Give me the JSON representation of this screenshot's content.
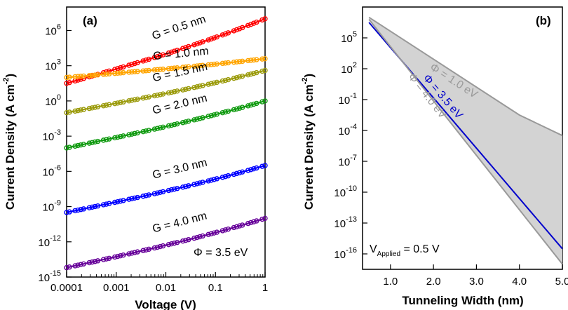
{
  "chart_data": [
    {
      "type": "scatter",
      "panel_label": "(a)",
      "title": "",
      "xlabel": "Voltage (V)",
      "ylabel": "Current Density (A cm",
      "ylabel_superscript": "-2",
      "ylabel_close": ")",
      "x_scale": "log",
      "y_scale": "log",
      "xlim": [
        0.0001,
        1
      ],
      "ylim_log10": [
        -15,
        8
      ],
      "x_ticks": [
        0.0001,
        0.001,
        0.01,
        0.1,
        1
      ],
      "x_tick_labels": [
        "0.0001",
        "0.001",
        "0.01",
        "0.1",
        "1"
      ],
      "y_ticks_log10": [
        -15,
        -12,
        -9,
        -6,
        -3,
        0,
        3,
        6
      ],
      "y_tick_base": "10",
      "y_tick_exponents": [
        "-15",
        "-12",
        "-9",
        "-6",
        "-3",
        "0",
        "3",
        "6"
      ],
      "grid": false,
      "annotation": "Φ = 3.5 eV",
      "series": [
        {
          "name": "G = 0.5 nm",
          "color": "#ff0000",
          "x_range": [
            0.0001,
            1
          ],
          "log10_y_range": [
            1.5,
            7.0
          ]
        },
        {
          "name": "G = 1.0 nm",
          "color": "#ffa500",
          "x_range": [
            0.0001,
            1
          ],
          "log10_y_range": [
            2.0,
            3.6
          ]
        },
        {
          "name": "G = 1.5 nm",
          "color": "#9b9b0c",
          "x_range": [
            0.0001,
            1
          ],
          "log10_y_range": [
            -1.0,
            2.6
          ]
        },
        {
          "name": "G = 2.0 nm",
          "color": "#0f9a0f",
          "x_range": [
            0.0001,
            1
          ],
          "log10_y_range": [
            -4.0,
            0.0
          ]
        },
        {
          "name": "G = 3.0 nm",
          "color": "#0000ff",
          "x_range": [
            0.0001,
            1
          ],
          "log10_y_range": [
            -9.5,
            -5.5
          ]
        },
        {
          "name": "G = 4.0 nm",
          "color": "#660099",
          "x_range": [
            0.0001,
            1
          ],
          "log10_y_range": [
            -14.2,
            -10.0
          ]
        }
      ]
    },
    {
      "type": "area",
      "panel_label": "(b)",
      "title": "",
      "xlabel": "Tunneling Width (nm)",
      "ylabel": "Current Density (A cm",
      "ylabel_superscript": "-2",
      "ylabel_close": ")",
      "x_scale": "linear",
      "y_scale": "log",
      "xlim": [
        0.35,
        5.0
      ],
      "ylim_log10": [
        -17.5,
        8
      ],
      "x_ticks": [
        1.0,
        2.0,
        3.0,
        4.0,
        5.0
      ],
      "x_tick_labels": [
        "1.0",
        "2.0",
        "3.0",
        "4.0",
        "5.0"
      ],
      "y_ticks_log10": [
        -16,
        -13,
        -10,
        -7,
        -4,
        -1,
        2,
        5
      ],
      "y_tick_base": "10",
      "y_tick_exponents": [
        "-16",
        "-13",
        "-10",
        "-7",
        "-4",
        "-1",
        "2",
        "5"
      ],
      "grid": false,
      "annotation_main": "V",
      "annotation_sub": "Applied",
      "annotation_rest": " = 0.5 V",
      "series": [
        {
          "name": "Φ = 1.0 eV",
          "color": "#999999",
          "x": [
            0.5,
            4.0,
            5.0
          ],
          "log10_y": [
            7.0,
            -2.5,
            -4.5
          ]
        },
        {
          "name": "Φ = 3.5 eV",
          "color": "#0000cc",
          "x": [
            0.5,
            5.0
          ],
          "log10_y": [
            6.5,
            -15.5
          ]
        },
        {
          "name": "Φ = 4.0 eV",
          "color": "#999999",
          "x": [
            0.5,
            5.0
          ],
          "log10_y": [
            6.8,
            -17.0
          ]
        }
      ],
      "fill": {
        "between": [
          "Φ = 1.0 eV",
          "Φ = 4.0 eV"
        ],
        "color": "#d3d3d3"
      }
    }
  ]
}
